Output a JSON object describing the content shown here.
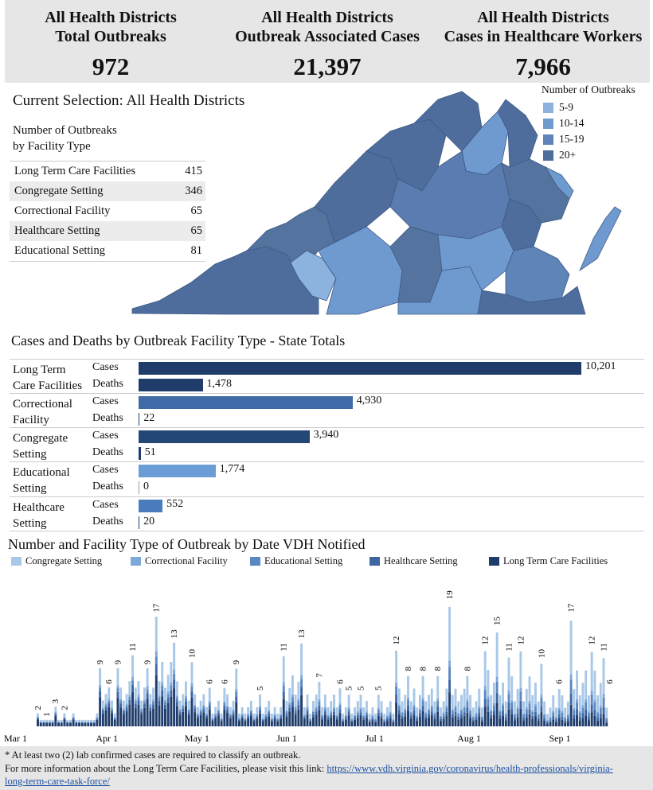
{
  "kpis": [
    {
      "title_line1": "All Health Districts",
      "title_line2": "Total Outbreaks",
      "value": "972"
    },
    {
      "title_line1": "All Health Districts",
      "title_line2": "Outbreak Associated Cases",
      "value": "21,397"
    },
    {
      "title_line1": "All Health Districts",
      "title_line2": "Cases in Healthcare Workers",
      "value": "7,966"
    }
  ],
  "selection_title": "Current Selection: All Health Districts",
  "facility_table": {
    "title_line1": "Number of Outbreaks",
    "title_line2": "by Facility Type",
    "rows": [
      {
        "label": "Long Term Care Facilities",
        "value": "415"
      },
      {
        "label": "Congregate Setting",
        "value": "346"
      },
      {
        "label": "Correctional Facility",
        "value": "65"
      },
      {
        "label": "Healthcare Setting",
        "value": "65"
      },
      {
        "label": "Educational Setting",
        "value": "81"
      }
    ]
  },
  "map_legend": {
    "title": "Number of Outbreaks",
    "items": [
      {
        "label": "5-9",
        "color": "#8cb3dd"
      },
      {
        "label": "10-14",
        "color": "#6f9ad0"
      },
      {
        "label": "15-19",
        "color": "#5f84b8"
      },
      {
        "label": "20+",
        "color": "#4f6d9c"
      }
    ]
  },
  "cases_deaths": {
    "title": "Cases and Deaths by Outbreak Facility Type - State Totals",
    "cases_label": "Cases",
    "deaths_label": "Deaths",
    "max": 10201,
    "rows": [
      {
        "line1": "Long Term",
        "line2": "Care Facilities",
        "cases": 10201,
        "cases_text": "10,201",
        "deaths": 1478,
        "deaths_text": "1,478",
        "color": "#1f3c6b"
      },
      {
        "line1": "Correctional",
        "line2": "Facility",
        "cases": 4930,
        "cases_text": "4,930",
        "deaths": 22,
        "deaths_text": "22",
        "color": "#3f6aa7"
      },
      {
        "line1": "Congregate",
        "line2": "Setting",
        "cases": 3940,
        "cases_text": "3,940",
        "deaths": 51,
        "deaths_text": "51",
        "color": "#234878"
      },
      {
        "line1": "Educational",
        "line2": "Setting",
        "cases": 1774,
        "cases_text": "1,774",
        "deaths": 0,
        "deaths_text": "0",
        "color": "#6a9dd6"
      },
      {
        "line1": "Healthcare",
        "line2": "Setting",
        "cases": 552,
        "cases_text": "552",
        "deaths": 20,
        "deaths_text": "20",
        "color": "#4a7bbd"
      }
    ]
  },
  "timeline": {
    "title": "Number and Facility Type of Outbreak by Date VDH Notified",
    "legend": [
      {
        "label": "Congregate Setting",
        "color": "#a9c8e8"
      },
      {
        "label": "Correctional Facility",
        "color": "#7ea8d8"
      },
      {
        "label": "Educational Setting",
        "color": "#5a88c2"
      },
      {
        "label": "Healthcare Setting",
        "color": "#3d66a3"
      },
      {
        "label": "Long Term Care Facilities",
        "color": "#1f3c6b"
      }
    ],
    "axis_labels": [
      "Mar 1",
      "Apr 1",
      "May 1",
      "Jun 1",
      "Jul 1",
      "Aug 1",
      "Sep 1"
    ]
  },
  "chart_data": {
    "type": "bar",
    "title": "Number and Facility Type of Outbreak by Date VDH Notified",
    "x_start": "Mar 1",
    "x_ticks": [
      "Mar 1",
      "Apr 1",
      "May 1",
      "Jun 1",
      "Jul 1",
      "Aug 1",
      "Sep 1"
    ],
    "annotated_peaks": [
      {
        "date": "Mar 8",
        "value": 2
      },
      {
        "date": "Mar 11",
        "value": 1
      },
      {
        "date": "Mar 14",
        "value": 3
      },
      {
        "date": "Mar 17",
        "value": 2
      },
      {
        "date": "Mar 29",
        "value": 9
      },
      {
        "date": "Apr 1",
        "value": 6
      },
      {
        "date": "Apr 4",
        "value": 9
      },
      {
        "date": "Apr 9",
        "value": 11
      },
      {
        "date": "Apr 14",
        "value": 9
      },
      {
        "date": "Apr 17",
        "value": 17
      },
      {
        "date": "Apr 23",
        "value": 13
      },
      {
        "date": "Apr 29",
        "value": 10
      },
      {
        "date": "May 5",
        "value": 6
      },
      {
        "date": "May 10",
        "value": 6
      },
      {
        "date": "May 14",
        "value": 9
      },
      {
        "date": "May 22",
        "value": 5
      },
      {
        "date": "May 30",
        "value": 11
      },
      {
        "date": "Jun 5",
        "value": 13
      },
      {
        "date": "Jun 11",
        "value": 7
      },
      {
        "date": "Jun 18",
        "value": 6
      },
      {
        "date": "Jun 21",
        "value": 5
      },
      {
        "date": "Jun 25",
        "value": 5
      },
      {
        "date": "Jul 1",
        "value": 5
      },
      {
        "date": "Jul 7",
        "value": 12
      },
      {
        "date": "Jul 11",
        "value": 8
      },
      {
        "date": "Jul 16",
        "value": 8
      },
      {
        "date": "Jul 21",
        "value": 8
      },
      {
        "date": "Jul 25",
        "value": 19
      },
      {
        "date": "Jul 31",
        "value": 8
      },
      {
        "date": "Aug 6",
        "value": 12
      },
      {
        "date": "Aug 10",
        "value": 15
      },
      {
        "date": "Aug 14",
        "value": 11
      },
      {
        "date": "Aug 18",
        "value": 12
      },
      {
        "date": "Aug 25",
        "value": 10
      },
      {
        "date": "Aug 31",
        "value": 6
      },
      {
        "date": "Sep 4",
        "value": 17
      },
      {
        "date": "Sep 11",
        "value": 12
      },
      {
        "date": "Sep 15",
        "value": 11
      },
      {
        "date": "Sep 17",
        "value": 6
      }
    ],
    "series_names": [
      "Congregate Setting",
      "Correctional Facility",
      "Educational Setting",
      "Healthcare Setting",
      "Long Term Care Facilities"
    ]
  },
  "footer": {
    "note": "* At least two (2) lab confirmed cases are required to classify an outbreak.",
    "info": "For more information about the Long Term Care Facilities, please visit this link: ",
    "link_line1": "https://www.vdh.virginia.gov/coronavirus/health-professionals/virginia-",
    "link_line2": "long-term-care-task-force/"
  }
}
